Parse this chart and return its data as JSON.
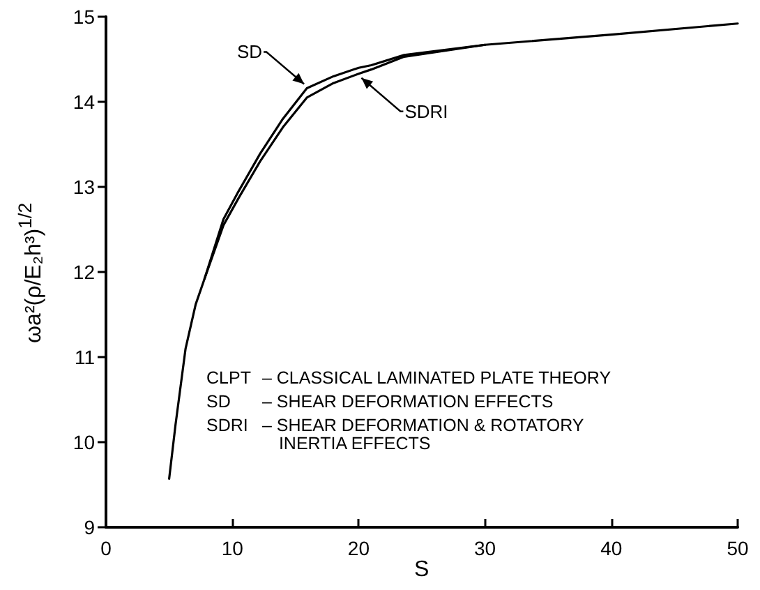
{
  "chart_data": {
    "type": "line",
    "xlabel": "S",
    "ylabel": "ωa²(ρ/E₂h³)$^{1/2}$",
    "xlim": [
      0,
      50
    ],
    "xticks": [
      0,
      10,
      20,
      30,
      40,
      50
    ],
    "ylim": [
      9,
      15
    ],
    "yticks": [
      9,
      10,
      11,
      12,
      13,
      14,
      15
    ],
    "grid": false,
    "legend": false,
    "marker": "none",
    "line_style": "solid",
    "series": [
      {
        "name": "SD",
        "color": "#000000",
        "x": [
          5,
          5.5,
          6.3,
          7.1,
          7.8,
          9.3,
          10.5,
          12.2,
          14,
          15.9,
          18,
          20,
          21,
          23.6,
          30,
          40,
          50
        ],
        "values": [
          9.57,
          10.2,
          11.1,
          11.62,
          11.92,
          12.62,
          12.95,
          13.39,
          13.8,
          14.16,
          14.3,
          14.4,
          14.43,
          14.55,
          14.67,
          14.79,
          14.92
        ]
      },
      {
        "name": "SDRI",
        "color": "#000000",
        "x": [
          7.8,
          9.3,
          10.5,
          12.2,
          14,
          15.9,
          18,
          20,
          21,
          23.6,
          30
        ],
        "values": [
          11.92,
          12.55,
          12.87,
          13.3,
          13.7,
          14.05,
          14.22,
          14.33,
          14.38,
          14.53,
          14.67
        ]
      }
    ],
    "annotations": [
      "CLPT",
      "– CLASSICAL LAMINATED PLATE THEORY",
      "SD",
      "– SHEAR DEFORMATION EFFECTS",
      "SDRI",
      "– SHEAR DEFORMATION & ROTATORY",
      "INERTIA EFFECTS"
    ]
  }
}
